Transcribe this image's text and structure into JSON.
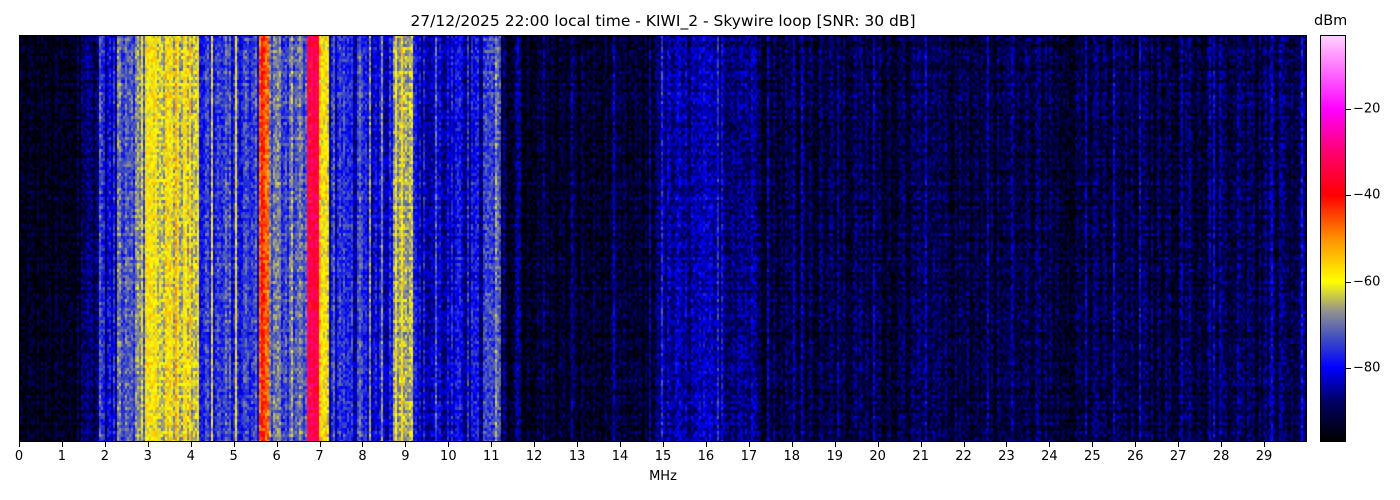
{
  "chart_data": {
    "type": "heatmap",
    "title": "27/12/2025 22:00 local time - KIWI_2 - Skywire loop [SNR: 30 dB]",
    "xlabel": "MHz",
    "ylabel": "",
    "xlim": [
      0,
      30
    ],
    "x_ticks": [
      0,
      1,
      2,
      3,
      4,
      5,
      6,
      7,
      8,
      9,
      10,
      11,
      12,
      13,
      14,
      15,
      16,
      17,
      18,
      19,
      20,
      21,
      22,
      23,
      24,
      25,
      26,
      27,
      28,
      29
    ],
    "colorbar": {
      "label": "dBm",
      "range": [
        -97,
        -3
      ],
      "ticks": [
        -20,
        -40,
        -60,
        -80
      ],
      "colormap": [
        {
          "dbm": -97,
          "color": "#000000"
        },
        {
          "dbm": -88,
          "color": "#000060"
        },
        {
          "dbm": -80,
          "color": "#0000ff"
        },
        {
          "dbm": -73,
          "color": "#4050c0"
        },
        {
          "dbm": -67,
          "color": "#909090"
        },
        {
          "dbm": -60,
          "color": "#ffff00"
        },
        {
          "dbm": -50,
          "color": "#ff9000"
        },
        {
          "dbm": -40,
          "color": "#ff0000"
        },
        {
          "dbm": -30,
          "color": "#ff0070"
        },
        {
          "dbm": -20,
          "color": "#ff00ff"
        },
        {
          "dbm": -3,
          "color": "#ffd0ff"
        }
      ]
    },
    "mean_level_by_band": [
      {
        "from_mhz": 0,
        "to_mhz": 1.5,
        "dbm": -95
      },
      {
        "from_mhz": 1.5,
        "to_mhz": 1.85,
        "dbm": -88
      },
      {
        "from_mhz": 1.85,
        "to_mhz": 1.95,
        "dbm": -72
      },
      {
        "from_mhz": 1.95,
        "to_mhz": 2.3,
        "dbm": -82
      },
      {
        "from_mhz": 2.3,
        "to_mhz": 2.95,
        "dbm": -70
      },
      {
        "from_mhz": 2.95,
        "to_mhz": 4.2,
        "dbm": -61
      },
      {
        "from_mhz": 4.2,
        "to_mhz": 5.6,
        "dbm": -76
      },
      {
        "from_mhz": 5.6,
        "to_mhz": 5.8,
        "dbm": -44
      },
      {
        "from_mhz": 5.8,
        "to_mhz": 6.7,
        "dbm": -72
      },
      {
        "from_mhz": 6.7,
        "to_mhz": 7.0,
        "dbm": -33
      },
      {
        "from_mhz": 7.0,
        "to_mhz": 7.2,
        "dbm": -60
      },
      {
        "from_mhz": 7.2,
        "to_mhz": 8.7,
        "dbm": -80
      },
      {
        "from_mhz": 8.7,
        "to_mhz": 9.2,
        "dbm": -62
      },
      {
        "from_mhz": 9.2,
        "to_mhz": 10.8,
        "dbm": -83
      },
      {
        "from_mhz": 10.8,
        "to_mhz": 11.25,
        "dbm": -77
      },
      {
        "from_mhz": 11.25,
        "to_mhz": 14.8,
        "dbm": -93
      },
      {
        "from_mhz": 14.8,
        "to_mhz": 17.3,
        "dbm": -86
      },
      {
        "from_mhz": 17.3,
        "to_mhz": 29,
        "dbm": -91
      },
      {
        "from_mhz": 29,
        "to_mhz": 30,
        "dbm": -89
      }
    ]
  }
}
